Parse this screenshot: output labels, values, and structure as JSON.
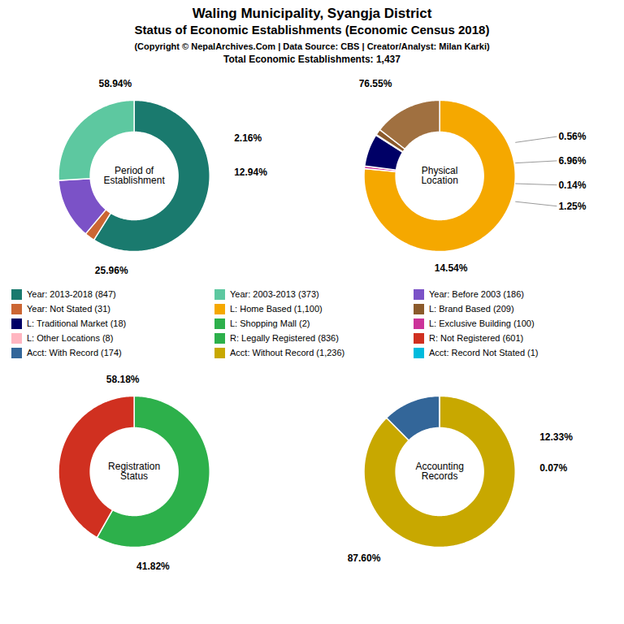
{
  "title": "Waling Municipality, Syangja District\nStatus of Economic Establishments (Economic Census 2018)",
  "subtitle": "(Copyright © NepalArchives.Com | Data Source: CBS | Creator/Analyst: Milan Karki)\nTotal Economic Establishments: 1,437",
  "chart_data": [
    {
      "type": "pie",
      "title": "Period of\nEstablishment",
      "values": [
        58.94,
        2.16,
        12.94,
        25.96
      ],
      "value_labels": [
        "58.94%",
        "2.16%",
        "12.94%",
        "25.96%"
      ],
      "colors": [
        "#1A7A6E",
        "#CC6633",
        "#7B52C7",
        "#5DC8A0"
      ],
      "data_labels": true
    },
    {
      "type": "pie",
      "title": "Physical\nLocation",
      "values": [
        76.55,
        0.56,
        6.96,
        0.14,
        1.25,
        14.54
      ],
      "value_labels": [
        "76.55%",
        "0.56%",
        "6.96%",
        "0.14%",
        "1.25%",
        "14.54%"
      ],
      "colors": [
        "#F5A800",
        "#CC3399",
        "#000066",
        "#006644",
        "#8B5A2B",
        "#A07040"
      ],
      "data_labels": true
    },
    {
      "type": "legend",
      "series": [
        {
          "name": "Year: 2013-2018 (847)",
          "color": "#1A7A6E"
        },
        {
          "name": "Year: 2003-2013 (373)",
          "color": "#5DC8A0"
        },
        {
          "name": "Year: Before 2003 (186)",
          "color": "#7B52C7"
        },
        {
          "name": "Year: Not Stated (31)",
          "color": "#CC6633"
        },
        {
          "name": "L: Home Based (1,100)",
          "color": "#F5A800"
        },
        {
          "name": "L: Brand Based (209)",
          "color": "#8B5A2B"
        },
        {
          "name": "L: Traditional Market (18)",
          "color": "#000066"
        },
        {
          "name": "L: Shopping Mall (2)",
          "color": "#2DB04B"
        },
        {
          "name": "L: Exclusive Building (100)",
          "color": "#CC3399"
        },
        {
          "name": "L: Other Locations (8)",
          "color": "#FFB6C1"
        },
        {
          "name": "R: Legally Registered (836)",
          "color": "#2DB04B"
        },
        {
          "name": "R: Not Registered (601)",
          "color": "#D03020"
        },
        {
          "name": "Acct: With Record (174)",
          "color": "#336699"
        },
        {
          "name": "Acct: Without Record (1,236)",
          "color": "#C8A800"
        },
        {
          "name": "Acct: Record Not Stated (1)",
          "color": "#00BBDD"
        }
      ]
    },
    {
      "type": "pie",
      "title": "Registration\nStatus",
      "values": [
        58.18,
        41.82
      ],
      "value_labels": [
        "58.18%",
        "41.82%"
      ],
      "colors": [
        "#2DB04B",
        "#D03020"
      ],
      "data_labels": true
    },
    {
      "type": "pie",
      "title": "Accounting\nRecords",
      "values": [
        87.6,
        12.33,
        0.07
      ],
      "value_labels": [
        "87.60%",
        "12.33%",
        "0.07%"
      ],
      "colors": [
        "#C8A800",
        "#336699",
        "#00BBDD"
      ],
      "data_labels": true
    }
  ]
}
